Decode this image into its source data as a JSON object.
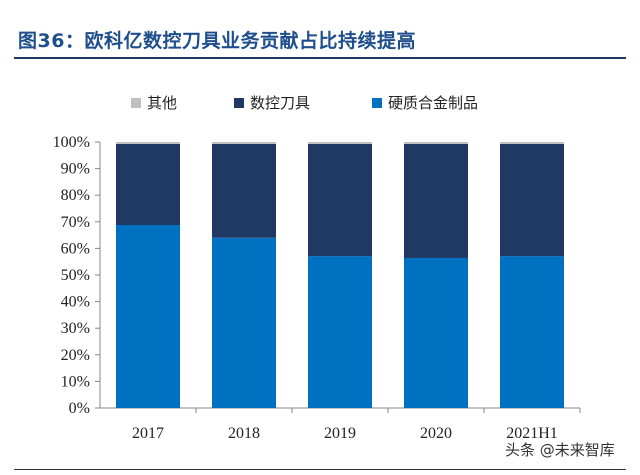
{
  "title": "图36：欧科亿数控刀具业务贡献占比持续提高",
  "watermark": "头条 @未来智库",
  "colors": {
    "title": "#1f4e8c",
    "other": "#c0c0c0",
    "cnc_tools": "#1f3864",
    "carbide": "#0070c0"
  },
  "legend": [
    {
      "key": "other",
      "label": "其他"
    },
    {
      "key": "cnc_tools",
      "label": "数控刀具"
    },
    {
      "key": "carbide",
      "label": "硬质合金制品"
    }
  ],
  "chart_data": {
    "type": "bar",
    "stacked": true,
    "categories": [
      "2017",
      "2018",
      "2019",
      "2020",
      "2021H1"
    ],
    "series": [
      {
        "name": "硬质合金制品",
        "values": [
          68.8,
          64.0,
          57.1,
          56.4,
          57.1
        ]
      },
      {
        "name": "数控刀具",
        "values": [
          30.5,
          35.3,
          42.2,
          42.9,
          42.2
        ]
      },
      {
        "name": "其他",
        "values": [
          0.7,
          0.7,
          0.7,
          0.7,
          0.7
        ]
      }
    ],
    "ylim": [
      0,
      100
    ],
    "yticks": [
      "0%",
      "10%",
      "20%",
      "30%",
      "40%",
      "50%",
      "60%",
      "70%",
      "80%",
      "90%",
      "100%"
    ],
    "grid": false,
    "legend_position": "top"
  }
}
